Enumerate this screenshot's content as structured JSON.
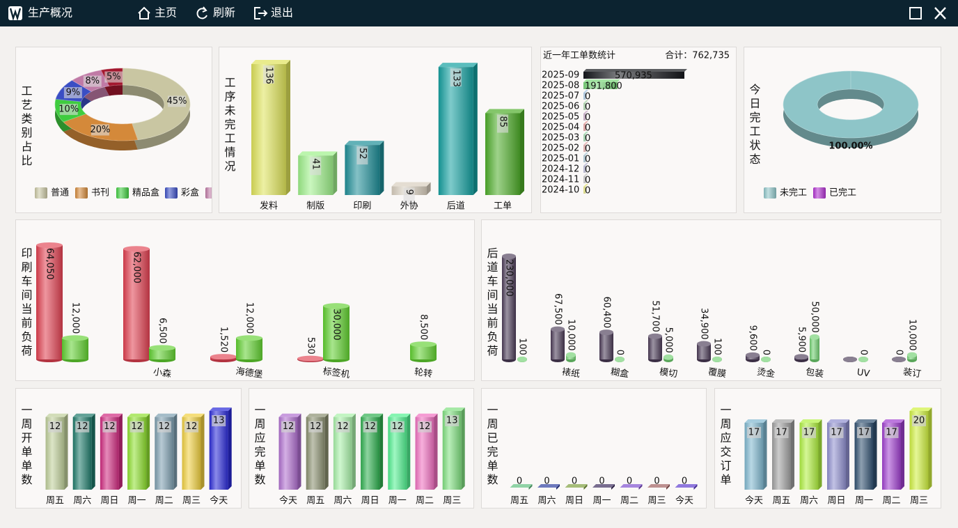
{
  "window": {
    "title": "生产概况",
    "menu": [
      "主页",
      "刷新",
      "退出"
    ]
  },
  "chart_data": [
    {
      "type": "pie",
      "title": "工艺类别占比",
      "categories": [
        "普通",
        "书刊",
        "精品盒",
        "彩盒",
        null,
        null
      ],
      "values": [
        45,
        20,
        10,
        9,
        8,
        5
      ],
      "value_labels": [
        "45%",
        "20%",
        "10%",
        "9%",
        "8%",
        "5%"
      ],
      "colors": [
        "#c9c6a2",
        "#d4893a",
        "#3fcc3f",
        "#3a4ec4",
        "#c07aa6",
        "#a3172e"
      ],
      "legend": "bottom"
    },
    {
      "type": "bar",
      "title": "工序未完工情况",
      "categories": [
        "发料",
        "制版",
        "印刷",
        "外协",
        "后道",
        "工单"
      ],
      "values": [
        136,
        41,
        52,
        9,
        133,
        85
      ],
      "colors": [
        "#dfe35a",
        "#9ef08a",
        "#1f8f98",
        "#d9cfbf",
        "#14a0a0",
        "#4fad2a"
      ]
    },
    {
      "type": "hbar",
      "title": "近一年工单数统计",
      "subtitle": "合计：762,735",
      "categories": [
        "2025-09",
        "2025-08",
        "2025-07",
        "2025-06",
        "2025-05",
        "2025-04",
        "2025-03",
        "2025-02",
        "2025-01",
        "2024-12",
        "2024-11",
        "2024-10"
      ],
      "values": [
        570935,
        191800,
        0,
        0,
        0,
        0,
        0,
        0,
        0,
        0,
        0,
        0
      ],
      "value_labels": [
        "570,935",
        "191,800",
        "0",
        "0",
        "0",
        "0",
        "0",
        "0",
        "0",
        "0",
        "0",
        "0"
      ],
      "colors": [
        "#15171c",
        "#7cd87c",
        "#9cc0e0",
        "#a0d0a0",
        "#c0a0c0",
        "#e09090",
        "#90d0a0",
        "#e0a0a0",
        "#a0c0d0",
        "#b0b0d0",
        "#c0c0c0",
        "#e0e070"
      ]
    },
    {
      "type": "pie",
      "title": "今日完工状态",
      "categories": [
        "未完工",
        "已完工"
      ],
      "values": [
        100,
        0
      ],
      "value_labels": [
        "100.00%",
        null
      ],
      "colors": [
        "#8ec5c8",
        "#b030d0"
      ],
      "legend": "bottom"
    },
    {
      "type": "grouped_bar",
      "title": "印刷车间当前负荷",
      "categories": [
        null,
        "小森",
        "海德堡",
        "标签机",
        "轮转"
      ],
      "series": [
        {
          "color": "#e04050",
          "values": [
            64050,
            62000,
            1520,
            530,
            null
          ],
          "value_labels": [
            "64,050",
            "62,000",
            "1,520",
            "530",
            null
          ]
        },
        {
          "color": "#60d030",
          "values": [
            12000,
            6500,
            12000,
            30000,
            8500
          ],
          "value_labels": [
            "12,000",
            "6,500",
            "12,000",
            "30,000",
            "8,500"
          ]
        }
      ]
    },
    {
      "type": "grouped_bar",
      "title": "后道车间当前负荷",
      "categories": [
        null,
        "裱纸",
        "糊盒",
        "模切",
        "覆膜",
        "烫金",
        "包装",
        "UV",
        "装订"
      ],
      "series": [
        {
          "color": "#4a3a55",
          "values": [
            230000,
            67500,
            60400,
            51700,
            34900,
            9600,
            5900,
            0,
            0
          ],
          "value_labels": [
            "230,000",
            "67,500",
            "60,400",
            "51,700",
            "34,900",
            "9,600",
            "5,900",
            null,
            "0"
          ]
        },
        {
          "color": "#70d070",
          "values": [
            100,
            10000,
            0,
            5000,
            100,
            0,
            50000,
            0,
            10000
          ],
          "value_labels": [
            "100",
            "10,000",
            "0",
            "5,000",
            "100",
            "0",
            "50,000",
            "0",
            "10,000"
          ]
        }
      ]
    },
    {
      "type": "bar",
      "title": "一周开单单数",
      "categories": [
        "周五",
        "周六",
        "周日",
        "周一",
        "周二",
        "周三",
        "今天"
      ],
      "values": [
        12,
        12,
        12,
        12,
        12,
        12,
        13
      ],
      "colors": [
        "#bfcf9a",
        "#1e7a6a",
        "#d02a80",
        "#8fe030",
        "#7d9fb0",
        "#f0d040",
        "#2a2ad8"
      ]
    },
    {
      "type": "bar",
      "title": "一周应完单数",
      "categories": [
        "今天",
        "周五",
        "周六",
        "周日",
        "周一",
        "周二",
        "周三"
      ],
      "values": [
        12,
        12,
        12,
        12,
        12,
        12,
        13
      ],
      "colors": [
        "#b070d0",
        "#8a9070",
        "#a8f0a8",
        "#30b050",
        "#50f090",
        "#f070c0",
        "#80e080"
      ]
    },
    {
      "type": "bar",
      "title": "一周已完单数",
      "categories": [
        "周五",
        "周六",
        "周日",
        "周一",
        "周二",
        "周三",
        "今天"
      ],
      "values": [
        0,
        0,
        0,
        0,
        0,
        0,
        0
      ],
      "colors": [
        "#60c080",
        "#3040a0",
        "#80a040",
        "#403060",
        "#8050d0",
        "#a06060",
        "#6040d0"
      ]
    },
    {
      "type": "bar",
      "title": "一周应交订单",
      "categories": [
        "今天",
        "周五",
        "周六",
        "周日",
        "周一",
        "周二",
        "周三"
      ],
      "values": [
        17,
        17,
        17,
        17,
        17,
        17,
        20
      ],
      "colors": [
        "#80b8d0",
        "#a0a0a0",
        "#b0f040",
        "#9090d0",
        "#305070",
        "#a040d0",
        "#d0f040"
      ]
    }
  ]
}
